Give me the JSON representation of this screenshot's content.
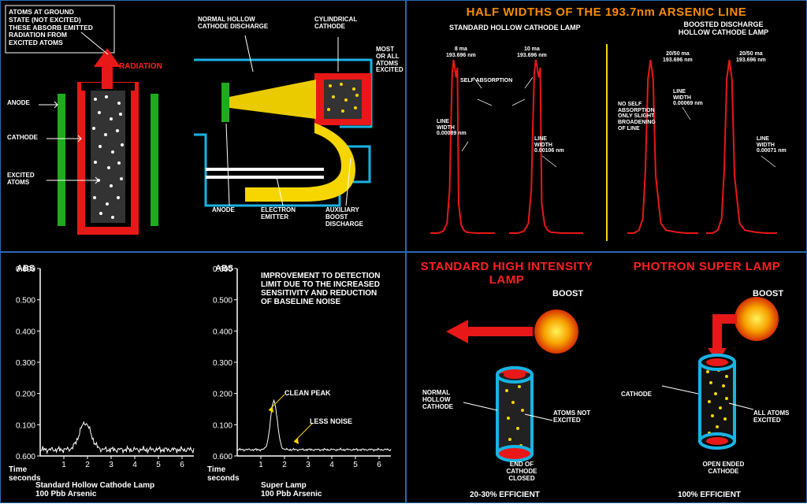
{
  "colors": {
    "bg": "#000000",
    "border": "#2a69b3",
    "yellow": "#f7d600",
    "orange": "#f78c00",
    "red": "#ff2020",
    "red2": "#e81818",
    "white": "#ffffff",
    "green": "#1faa1f",
    "blue": "#1f6cc7",
    "cyan": "#17b3e4"
  },
  "panel1": {
    "boxText": "ATOMS AT GROUND\nSTATE (NOT EXCITED)\nTHESE ABSORB EMITTED\nRADIATION FROM\nEXCITED ATOMS",
    "radiation": "RADIATION",
    "anode": "ANODE",
    "cathode": "CATHODE",
    "excitedAtoms": "EXCITED\nATOMS",
    "normalHollow": "NORMAL HOLLOW\nCATHODE DISCHARGE",
    "cylCathode": "CYLINDRICAL\nCATHODE",
    "mostAll": "MOST\nOR ALL\nATOMS\nEXCITED",
    "anode2": "ANODE",
    "electronEmitter": "ELECTRON\nEMITTER",
    "auxBoost": "AUXILIARY\nBOOST\nDISCHARGE"
  },
  "panel2": {
    "title": "HALF WIDTHS OF THE 193.7nm ARSENIC LINE",
    "sub1": "STANDARD HOLLOW CATHODE LAMP",
    "sub2": "BOOSTED DISCHARGE\nHOLLOW CATHODE LAMP",
    "p1a": "8 ma\n193.696 nm",
    "p1b": "10 ma\n193.696 nm",
    "selfAbs": "SELF ABSORPTION",
    "lw1": "LINE\nWIDTH\n0.00089 nm",
    "lw2": "LINE\nWIDTH\n0.00106 nm",
    "p2a": "20/50 ma\n193.696 nm",
    "p2b": "20/50 ma\n193.696 nm",
    "lw3": "LINE\nWIDTH\n0.00069 nm",
    "lw4": "LINE\nWIDTH\n0.00071 nm",
    "noSelf": "NO SELF\nABSORPTION\nONLY SLIGHT\nBROADENING\nOF LINE",
    "chart1": {
      "color": "#e81818",
      "x": [
        0,
        6,
        10,
        13,
        15,
        16,
        17,
        18,
        20,
        21,
        22,
        24,
        26,
        28,
        31,
        36,
        43,
        50
      ],
      "y": [
        0,
        0,
        2,
        10,
        45,
        110,
        165,
        178,
        160,
        170,
        30,
        8,
        3,
        1,
        0.5,
        0,
        0,
        0
      ]
    },
    "chart2": {
      "color": "#e81818",
      "x": [
        0,
        5,
        9,
        12,
        14,
        16,
        18,
        20,
        22,
        26,
        30,
        38,
        46,
        55
      ],
      "y": [
        0,
        0,
        3,
        15,
        65,
        160,
        180,
        160,
        60,
        10,
        3,
        1,
        0,
        0
      ]
    }
  },
  "panel3": {
    "abs": "ABS",
    "yTicks": [
      "0.600",
      "0.500",
      "0.400",
      "0.300",
      "0.200",
      "0.100",
      "0.600"
    ],
    "xTicks": [
      "1",
      "2",
      "3",
      "4",
      "5",
      "6"
    ],
    "timeLabel": "Time\nseconds",
    "caption1": "Standard Hollow Cathode Lamp\n100 Pbb Arsenic",
    "caption2": "Super Lamp\n100 Pbb Arsenic",
    "improvement": "IMPROVEMENT TO DETECTION\nLIMIT DUE TO THE INCREASED\nSENSITIVITY AND REDUCTION\nOF BASELINE NOISE",
    "cleanPeak": "CLEAN PEAK",
    "lessNoise": "LESS NOISE",
    "axisColor": "#ffffff",
    "ylim": [
      0,
      0.6
    ],
    "chart1": {
      "color": "#ffffff",
      "noise": 4,
      "peakX": 1.9,
      "peakH": 34,
      "peakW": 0.6
    },
    "chart2": {
      "color": "#ffffff",
      "noise": 1.5,
      "peakX": 1.55,
      "peakH": 62,
      "peakW": 0.35
    }
  },
  "panel4": {
    "title1": "STANDARD HIGH\nINTENSITY LAMP",
    "title2": "PHOTRON\nSUPER LAMP",
    "boost": "BOOST",
    "normalHollow": "NORMAL\nHOLLOW\nCATHODE",
    "atomsNot": "ATOMS NOT\nEXCITED",
    "endClosed": "END OF\nCATHODE\nCLOSED",
    "eff1": "20-30% EFFICIENT",
    "cathode": "CATHODE",
    "allExcited": "ALL ATOMS\nEXCITED",
    "openEnded": "OPEN ENDED\nCATHODE",
    "eff2": "100% EFFICIENT",
    "boostColor": [
      "#fff25a",
      "#f7a300",
      "#d63000"
    ]
  }
}
